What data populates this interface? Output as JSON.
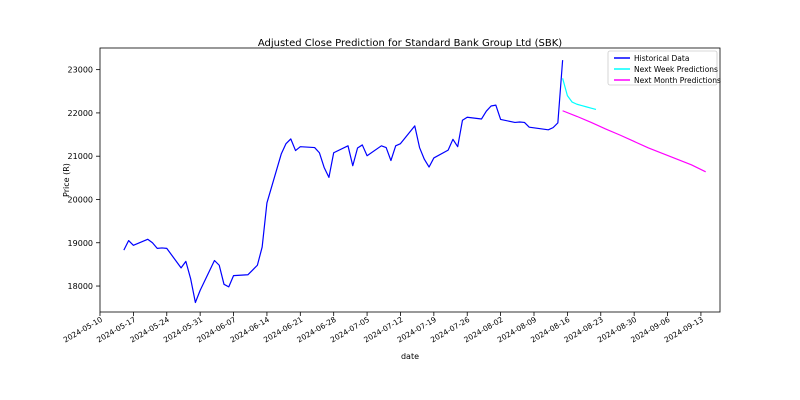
{
  "chart_data": {
    "type": "line",
    "title": "Adjusted Close Prediction for Standard Bank Group Ltd (SBK)",
    "xlabel": "date",
    "ylabel": "Price (R)",
    "xlim": [
      "2024-05-10",
      "2024-09-17"
    ],
    "ylim": [
      17400,
      23500
    ],
    "x_ticks": [
      "2024-05-10",
      "2024-05-17",
      "2024-05-24",
      "2024-05-31",
      "2024-06-07",
      "2024-06-14",
      "2024-06-21",
      "2024-06-28",
      "2024-07-05",
      "2024-07-12",
      "2024-07-19",
      "2024-07-26",
      "2024-08-02",
      "2024-08-09",
      "2024-08-16",
      "2024-08-23",
      "2024-08-30",
      "2024-09-06",
      "2024-09-13"
    ],
    "y_ticks": [
      18000,
      19000,
      20000,
      21000,
      22000,
      23000
    ],
    "grid": false,
    "legend_position": "top-right",
    "series": [
      {
        "name": "Historical Data",
        "color": "#0000ff",
        "x": [
          "2024-05-15",
          "2024-05-16",
          "2024-05-17",
          "2024-05-20",
          "2024-05-21",
          "2024-05-22",
          "2024-05-23",
          "2024-05-24",
          "2024-05-27",
          "2024-05-28",
          "2024-05-29",
          "2024-05-30",
          "2024-05-31",
          "2024-06-03",
          "2024-06-04",
          "2024-06-05",
          "2024-06-06",
          "2024-06-07",
          "2024-06-10",
          "2024-06-11",
          "2024-06-12",
          "2024-06-13",
          "2024-06-14",
          "2024-06-17",
          "2024-06-18",
          "2024-06-19",
          "2024-06-20",
          "2024-06-21",
          "2024-06-24",
          "2024-06-25",
          "2024-06-26",
          "2024-06-27",
          "2024-06-28",
          "2024-07-01",
          "2024-07-02",
          "2024-07-03",
          "2024-07-04",
          "2024-07-05",
          "2024-07-08",
          "2024-07-09",
          "2024-07-10",
          "2024-07-11",
          "2024-07-12",
          "2024-07-15",
          "2024-07-16",
          "2024-07-17",
          "2024-07-18",
          "2024-07-19",
          "2024-07-22",
          "2024-07-23",
          "2024-07-24",
          "2024-07-25",
          "2024-07-26",
          "2024-07-29",
          "2024-07-30",
          "2024-07-31",
          "2024-08-01",
          "2024-08-02",
          "2024-08-05",
          "2024-08-06",
          "2024-08-07",
          "2024-08-08",
          "2024-08-12",
          "2024-08-13",
          "2024-08-14",
          "2024-08-15"
        ],
        "y": [
          18830,
          19050,
          18940,
          19080,
          19000,
          18870,
          18880,
          18870,
          18420,
          18570,
          18170,
          17620,
          17900,
          18590,
          18480,
          18040,
          17980,
          18240,
          18260,
          18370,
          18480,
          18900,
          19920,
          21050,
          21290,
          21400,
          21130,
          21220,
          21200,
          21080,
          20740,
          20510,
          21080,
          21240,
          20780,
          21190,
          21260,
          21010,
          21240,
          21200,
          20900,
          21240,
          21290,
          21700,
          21200,
          20930,
          20750,
          20960,
          21140,
          21390,
          21220,
          21830,
          21900,
          21860,
          22040,
          22160,
          22180,
          21850,
          21780,
          21790,
          21780,
          21670,
          21610,
          21660,
          21770,
          23220
        ]
      },
      {
        "name": "Next Week Predictions",
        "color": "#00ffff",
        "x": [
          "2024-08-15",
          "2024-08-16",
          "2024-08-17",
          "2024-08-18",
          "2024-08-19",
          "2024-08-20",
          "2024-08-21",
          "2024-08-22"
        ],
        "y": [
          22800,
          22400,
          22250,
          22200,
          22170,
          22140,
          22110,
          22080
        ]
      },
      {
        "name": "Next Month Predictions",
        "color": "#ff00ff",
        "x": [
          "2024-08-15",
          "2024-08-18",
          "2024-08-21",
          "2024-08-24",
          "2024-08-27",
          "2024-08-30",
          "2024-09-02",
          "2024-09-05",
          "2024-09-08",
          "2024-09-11",
          "2024-09-14"
        ],
        "y": [
          22050,
          21920,
          21780,
          21630,
          21490,
          21340,
          21190,
          21060,
          20930,
          20800,
          20640
        ]
      }
    ]
  }
}
